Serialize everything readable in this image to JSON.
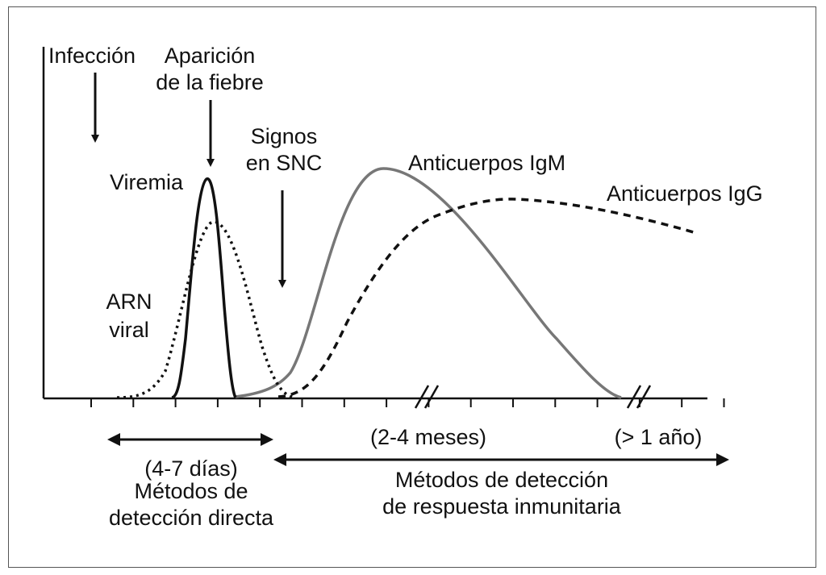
{
  "labels": {
    "infeccion": "Infección",
    "aparicion_1": "Aparición",
    "aparicion_2": "de la fiebre",
    "signos_1": "Signos",
    "signos_2": "en SNC",
    "viremia": "Viremia",
    "arn_1": "ARN",
    "arn_2": "viral",
    "igm": "Anticuerpos IgM",
    "igg": "Anticuerpos IgG",
    "dias": "(4-7 días)",
    "directa_1": "Métodos de",
    "directa_2": "detección directa",
    "meses": "(2-4 meses)",
    "anio": "(> 1 año)",
    "inmune_1": "Métodos de detección",
    "inmune_2": "de respuesta inmunitaria"
  },
  "curves": [
    {
      "id": "viremia",
      "style": "solid",
      "color": "#111111"
    },
    {
      "id": "arn-viral",
      "style": "dotted",
      "color": "#111111"
    },
    {
      "id": "igm",
      "style": "solid",
      "color": "#777777"
    },
    {
      "id": "igg",
      "style": "dashed",
      "color": "#111111"
    }
  ]
}
